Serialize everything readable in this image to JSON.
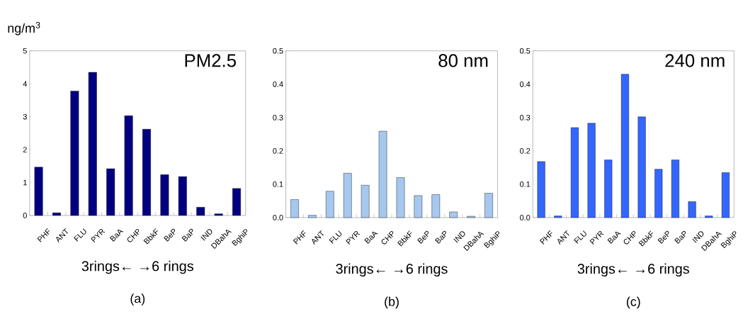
{
  "chart_data": [
    {
      "type": "bar",
      "title": "PM2.5",
      "ylabel": "ng/m$^{3}$",
      "xlabel": "3rings← →6 rings",
      "annotations": [
        "(a)"
      ],
      "categories": [
        "PHF",
        "ANT",
        "FLU",
        "PYR",
        "BaA",
        "CHP",
        "BbkF",
        "BeP",
        "BaP",
        "IND",
        "DBahA",
        "BghiP"
      ],
      "values": [
        1.47,
        0.08,
        3.78,
        4.35,
        1.42,
        3.03,
        2.62,
        1.24,
        1.18,
        0.25,
        0.05,
        0.82
      ],
      "color": "#000080",
      "ylim": [
        0,
        5
      ],
      "yticks": [
        0,
        1,
        2,
        3,
        4,
        5
      ]
    },
    {
      "type": "bar",
      "title": "80 nm",
      "xlabel": "3rings← →6 rings",
      "annotations": [
        "(b)"
      ],
      "categories": [
        "PHF",
        "ANT",
        "FLU",
        "PYR",
        "BaA",
        "CHP",
        "BbkF",
        "BeP",
        "BaP",
        "IND",
        "DBahA",
        "BghiP"
      ],
      "values": [
        0.054,
        0.007,
        0.079,
        0.133,
        0.097,
        0.259,
        0.12,
        0.066,
        0.069,
        0.017,
        0.004,
        0.073
      ],
      "color": "#a6c8ee",
      "ylim": [
        0,
        0.5
      ],
      "yticks": [
        {
          "value": 0,
          "label": "0.0"
        },
        0.1,
        0.2,
        0.3,
        0.4,
        0.5
      ]
    },
    {
      "type": "bar",
      "title": "240 nm",
      "xlabel": "3rings← →6 rings",
      "annotations": [
        "(c)"
      ],
      "categories": [
        "PHF",
        "ANT",
        "FLU",
        "PYR",
        "BaA",
        "CHP",
        "BbkF",
        "BeP",
        "BaP",
        "IND",
        "DBahA",
        "BghiP"
      ],
      "values": [
        0.168,
        0.005,
        0.27,
        0.283,
        0.173,
        0.43,
        0.302,
        0.145,
        0.173,
        0.048,
        0.005,
        0.135
      ],
      "color": "#3366ff",
      "ylim": [
        0,
        0.5
      ],
      "yticks": [
        {
          "value": 0,
          "label": "0.0"
        },
        0.1,
        0.2,
        0.3,
        0.4,
        0.5
      ]
    }
  ]
}
